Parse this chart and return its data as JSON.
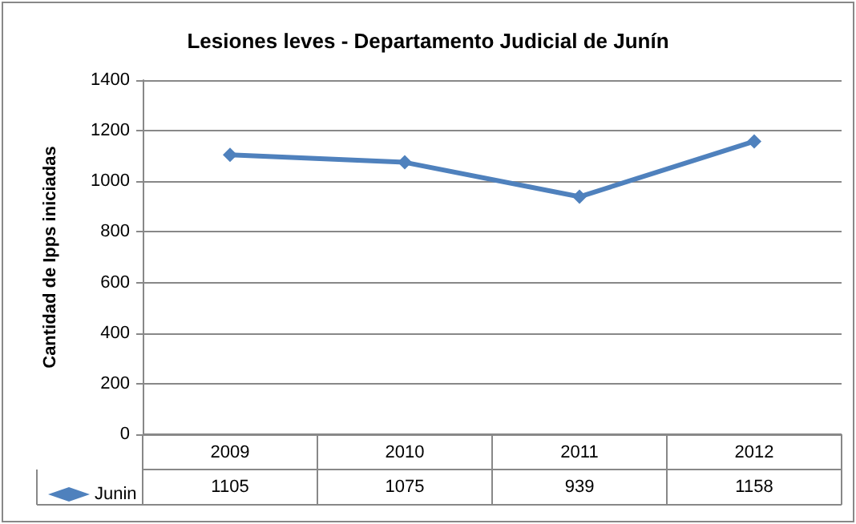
{
  "chart_data": {
    "type": "line",
    "title": "Lesiones leves - Departamento Judicial de Junín",
    "ylabel": "Cantidad de Ipps iniciadas",
    "categories": [
      "2009",
      "2010",
      "2011",
      "2012"
    ],
    "series": [
      {
        "name": "Junin",
        "color": "#4f81bd",
        "values": [
          1105,
          1075,
          939,
          1158
        ]
      }
    ],
    "ylim": [
      0,
      1400
    ],
    "yticks": [
      0,
      200,
      400,
      600,
      800,
      1000,
      1200,
      1400
    ],
    "grid": "y",
    "legend": "bottom",
    "marker": "diamond",
    "line_style": "solid",
    "data_labels": true
  }
}
